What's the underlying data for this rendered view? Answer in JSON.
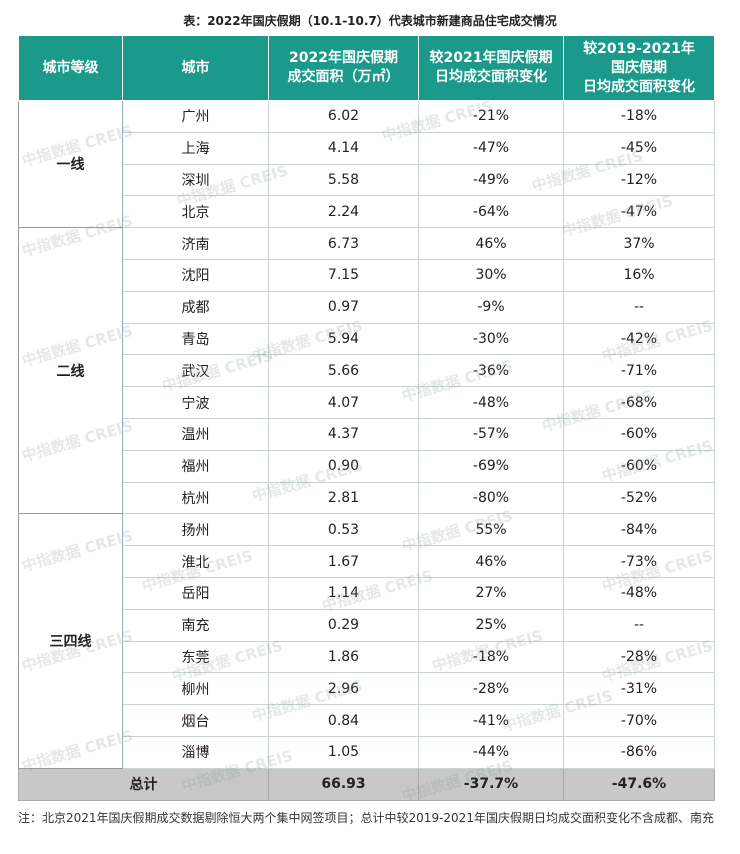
{
  "title": "表：2022年国庆假期（10.1-10.7）代表城市新建商品住宅成交情况",
  "table": {
    "header": [
      [
        "城市等级"
      ],
      [
        "城市"
      ],
      [
        "2022年国庆假期",
        "成交面积（万㎡）"
      ],
      [
        "较2021年国庆假期",
        "日均成交面积变化"
      ],
      [
        "较2019-2021年",
        "国庆假期",
        "日均成交面积变化"
      ]
    ],
    "tiers": [
      {
        "label": "一线",
        "rows": [
          [
            "广州",
            "6.02",
            "-21%",
            "-18%"
          ],
          [
            "上海",
            "4.14",
            "-47%",
            "-45%"
          ],
          [
            "深圳",
            "5.58",
            "-49%",
            "-12%"
          ],
          [
            "北京",
            "2.24",
            "-64%",
            "-47%"
          ]
        ]
      },
      {
        "label": "二线",
        "rows": [
          [
            "济南",
            "6.73",
            "46%",
            "37%"
          ],
          [
            "沈阳",
            "7.15",
            "30%",
            "16%"
          ],
          [
            "成都",
            "0.97",
            "-9%",
            "--"
          ],
          [
            "青岛",
            "5.94",
            "-30%",
            "-42%"
          ],
          [
            "武汉",
            "5.66",
            "-36%",
            "-71%"
          ],
          [
            "宁波",
            "4.07",
            "-48%",
            "-68%"
          ],
          [
            "温州",
            "4.37",
            "-57%",
            "-60%"
          ],
          [
            "福州",
            "0.90",
            "-69%",
            "-60%"
          ],
          [
            "杭州",
            "2.81",
            "-80%",
            "-52%"
          ]
        ]
      },
      {
        "label": "三四线",
        "rows": [
          [
            "扬州",
            "0.53",
            "55%",
            "-84%"
          ],
          [
            "淮北",
            "1.67",
            "46%",
            "-73%"
          ],
          [
            "岳阳",
            "1.14",
            "27%",
            "-48%"
          ],
          [
            "南充",
            "0.29",
            "25%",
            "--"
          ],
          [
            "东莞",
            "1.86",
            "-18%",
            "-28%"
          ],
          [
            "柳州",
            "2.96",
            "-28%",
            "-31%"
          ],
          [
            "烟台",
            "0.84",
            "-41%",
            "-70%"
          ],
          [
            "淄博",
            "1.05",
            "-44%",
            "-86%"
          ]
        ]
      }
    ],
    "total": [
      "总计",
      "66.93",
      "-37.7%",
      "-47.6%"
    ]
  },
  "note": "注：北京2021年国庆假期成交数据剔除恒大两个集中网签项目；总计中较2019-2021年国庆假期日均成交面积变化不含成都、南充",
  "watermark": "中指数据 CREIS"
}
